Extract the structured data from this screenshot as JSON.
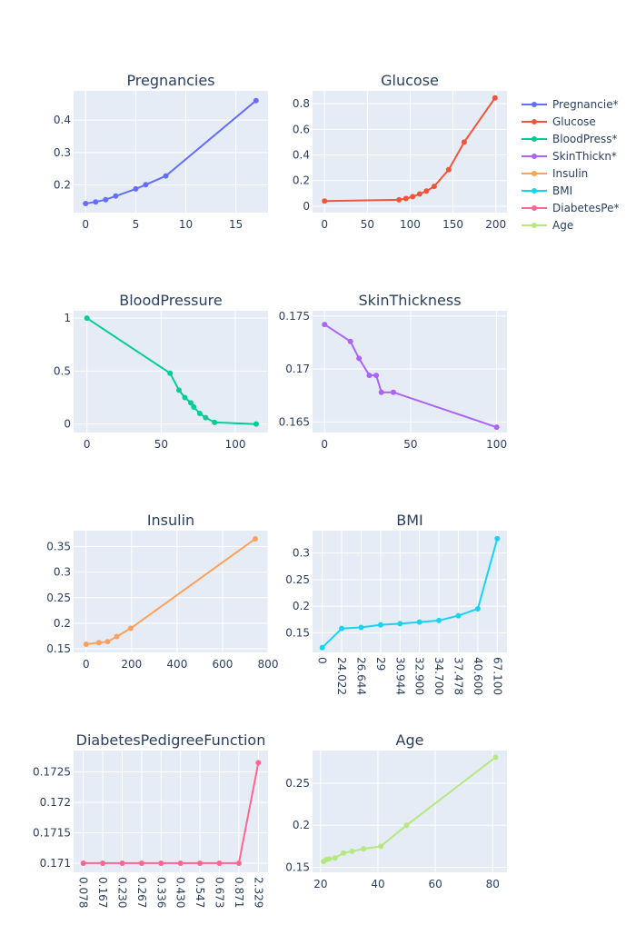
{
  "chart_data": {
    "type": "line",
    "colors": {
      "background": "#ffffff",
      "plot_bg": "#e5ecf6",
      "grid": "#ffffff",
      "text": "#2a3f5f"
    },
    "legend": {
      "placement": "top-right",
      "entries": [
        {
          "label": "Pregnancie*",
          "color": "#636efa"
        },
        {
          "label": "Glucose",
          "color": "#EF553B"
        },
        {
          "label": "BloodPress*",
          "color": "#00cc96"
        },
        {
          "label": "SkinThickn*",
          "color": "#ab63fa"
        },
        {
          "label": "Insulin",
          "color": "#FFA15A"
        },
        {
          "label": "BMI",
          "color": "#19d3f3"
        },
        {
          "label": "DiabetesPe*",
          "color": "#FF6692"
        },
        {
          "label": "Age",
          "color": "#B6E880"
        }
      ]
    },
    "charts": [
      {
        "title": "Pregnancies",
        "color": "#636efa",
        "xaxis": "linear",
        "xlim": [
          -1.2,
          18.2
        ],
        "ylim": [
          0.115,
          0.49
        ],
        "xticks": [
          0,
          5,
          10,
          15
        ],
        "yticks": [
          0.2,
          0.3,
          0.4
        ],
        "x": [
          0,
          1,
          2,
          3,
          5,
          6,
          8,
          17
        ],
        "y": [
          0.143,
          0.148,
          0.155,
          0.166,
          0.188,
          0.201,
          0.228,
          0.46
        ]
      },
      {
        "title": "Glucose",
        "color": "#EF553B",
        "xaxis": "linear",
        "xlim": [
          -14,
          213
        ],
        "ylim": [
          -0.05,
          0.9
        ],
        "xticks": [
          0,
          50,
          100,
          150,
          200
        ],
        "yticks": [
          0,
          0.2,
          0.4,
          0.6,
          0.8
        ],
        "x": [
          0,
          87,
          95,
          103,
          111,
          119,
          128,
          145,
          163,
          199
        ],
        "y": [
          0.04,
          0.05,
          0.06,
          0.075,
          0.095,
          0.118,
          0.155,
          0.285,
          0.5,
          0.845
        ]
      },
      {
        "title": "BloodPressure",
        "color": "#00cc96",
        "xaxis": "linear",
        "xlim": [
          -9,
          122
        ],
        "ylim": [
          -0.08,
          1.07
        ],
        "xticks": [
          0,
          50,
          100
        ],
        "yticks": [
          0,
          0.5,
          1
        ],
        "x": [
          0,
          56,
          62,
          66,
          70,
          72,
          76,
          80,
          86,
          114
        ],
        "y": [
          1.0,
          0.48,
          0.32,
          0.25,
          0.2,
          0.16,
          0.1,
          0.06,
          0.015,
          0.0
        ]
      },
      {
        "title": "SkinThickness",
        "color": "#ab63fa",
        "xaxis": "linear",
        "xlim": [
          -7,
          106
        ],
        "ylim": [
          0.164,
          0.1755
        ],
        "xticks": [
          0,
          50,
          100
        ],
        "yticks": [
          0.165,
          0.17,
          0.175
        ],
        "x": [
          0,
          15,
          20,
          26,
          30,
          33,
          40,
          100
        ],
        "y": [
          0.1742,
          0.1726,
          0.171,
          0.1694,
          0.1694,
          0.1678,
          0.1678,
          0.1645
        ]
      },
      {
        "title": "Insulin",
        "color": "#FFA15A",
        "xaxis": "linear",
        "xlim": [
          -55,
          800
        ],
        "ylim": [
          0.143,
          0.381
        ],
        "xticks": [
          0,
          200,
          400,
          600,
          800
        ],
        "yticks": [
          0.15,
          0.2,
          0.25,
          0.3,
          0.35
        ],
        "x": [
          0,
          56,
          94,
          135,
          196,
          744
        ],
        "y": [
          0.159,
          0.162,
          0.164,
          0.174,
          0.19,
          0.365
        ]
      },
      {
        "title": "BMI",
        "color": "#19d3f3",
        "xaxis": "category",
        "categories": [
          "0",
          "24.022",
          "26.644",
          "29",
          "30.944",
          "32.900",
          "34.700",
          "37.478",
          "40.600",
          "67.100"
        ],
        "ylim": [
          0.113,
          0.342
        ],
        "yticks": [
          0.15,
          0.2,
          0.25,
          0.3
        ],
        "y": [
          0.122,
          0.158,
          0.16,
          0.165,
          0.167,
          0.17,
          0.173,
          0.182,
          0.195,
          0.327
        ]
      },
      {
        "title": "DiabetesPedigreeFunction",
        "color": "#FF6692",
        "xaxis": "category",
        "categories": [
          "0.078",
          "0.167",
          "0.230",
          "0.267",
          "0.336",
          "0.430",
          "0.547",
          "0.673",
          "0.871",
          "2.329"
        ],
        "ylim": [
          0.17085,
          0.17285
        ],
        "yticks": [
          0.171,
          0.1715,
          0.172,
          0.1725
        ],
        "y": [
          0.171,
          0.171,
          0.171,
          0.171,
          0.171,
          0.171,
          0.171,
          0.171,
          0.171,
          0.17265
        ]
      },
      {
        "title": "Age",
        "color": "#B6E880",
        "xaxis": "linear",
        "xlim": [
          17.2,
          85
        ],
        "ylim": [
          0.144,
          0.289
        ],
        "xticks": [
          20,
          40,
          60,
          80
        ],
        "yticks": [
          0.15,
          0.2,
          0.25
        ],
        "x": [
          21,
          22,
          23,
          25,
          28,
          31,
          35,
          41,
          50,
          81
        ],
        "y": [
          0.157,
          0.159,
          0.16,
          0.161,
          0.167,
          0.169,
          0.172,
          0.175,
          0.2,
          0.281
        ]
      }
    ]
  }
}
